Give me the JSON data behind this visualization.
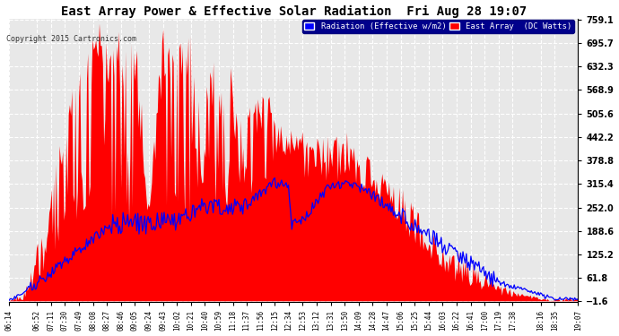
{
  "title": "East Array Power & Effective Solar Radiation  Fri Aug 28 19:07",
  "copyright": "Copyright 2015 Cartronics.com",
  "legend_blue": "Radiation (Effective w/m2)",
  "legend_red": "East Array  (DC Watts)",
  "ymin": -1.6,
  "ymax": 759.1,
  "yticks": [
    -1.6,
    61.8,
    125.2,
    188.6,
    252.0,
    315.4,
    378.8,
    442.2,
    505.6,
    568.9,
    632.3,
    695.7,
    759.1
  ],
  "bg_color": "#ffffff",
  "plot_bg_color": "#e8e8e8",
  "grid_color": "#ffffff",
  "red_color": "#ff0000",
  "blue_color": "#0000ff",
  "title_color": "#000000",
  "x_labels": [
    "06:14",
    "06:52",
    "07:11",
    "07:30",
    "07:49",
    "08:08",
    "08:27",
    "08:46",
    "09:05",
    "09:24",
    "09:43",
    "10:02",
    "10:21",
    "10:40",
    "10:59",
    "11:18",
    "11:37",
    "11:56",
    "12:15",
    "12:34",
    "12:53",
    "13:12",
    "13:31",
    "13:50",
    "14:09",
    "14:28",
    "14:47",
    "15:06",
    "15:25",
    "15:44",
    "16:03",
    "16:22",
    "16:41",
    "17:00",
    "17:19",
    "17:38",
    "18:16",
    "18:35",
    "19:07"
  ]
}
